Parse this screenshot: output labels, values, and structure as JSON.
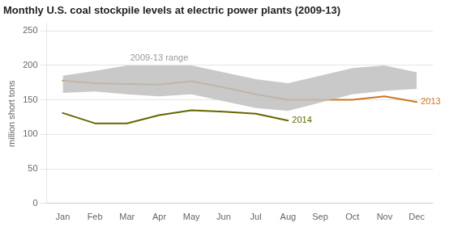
{
  "chart_data": {
    "type": "line",
    "title": "Monthly U.S. coal stockpile levels at electric power plants (2009-13)",
    "ylabel": "million short tons",
    "categories": [
      "Jan",
      "Feb",
      "Mar",
      "Apr",
      "May",
      "Jun",
      "Jul",
      "Aug",
      "Sep",
      "Oct",
      "Nov",
      "Dec"
    ],
    "series": [
      {
        "name": "2009-13 range",
        "type": "range",
        "color": "#c0c0c0",
        "upper": [
          185,
          192,
          200,
          200,
          200,
          190,
          180,
          174,
          185,
          196,
          200,
          190
        ],
        "lower": [
          160,
          162,
          158,
          155,
          158,
          148,
          138,
          134,
          146,
          158,
          163,
          166
        ]
      },
      {
        "name": "2013",
        "color": "#cc7722",
        "values": [
          178,
          174,
          173,
          172,
          177,
          168,
          158,
          150,
          150,
          150,
          155,
          147
        ]
      },
      {
        "name": "2014",
        "color": "#666600",
        "values": [
          131,
          116,
          116,
          128,
          135,
          133,
          130,
          120,
          null,
          null,
          null,
          null
        ]
      }
    ],
    "ylim": [
      0,
      260
    ],
    "yticks": [
      0,
      50,
      100,
      150,
      200,
      250
    ],
    "grid": true,
    "legend": false
  }
}
